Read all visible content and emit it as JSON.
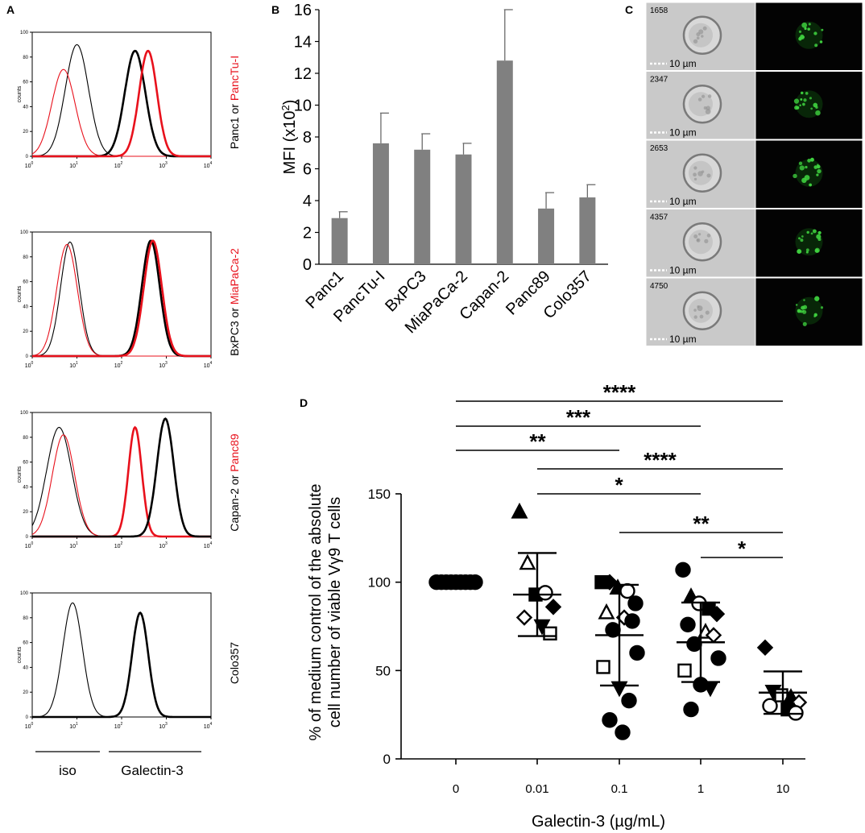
{
  "panel_labels": {
    "a": "A",
    "b": "B",
    "c": "C",
    "d": "D"
  },
  "colors": {
    "red": "#e8111c",
    "black": "#000000",
    "bar": "#808080",
    "green": "#3fd13f"
  },
  "chart_data": [
    {
      "id": "A",
      "type": "line",
      "description_kind": "flow cytometry histograms",
      "x_scale": "log",
      "xlim": [
        1,
        10000
      ],
      "ylim": [
        0,
        100
      ],
      "ylabel": "counts",
      "xtick_base": "10",
      "xtick_exps": [
        "0",
        "1",
        "2",
        "3",
        "4"
      ],
      "yticks": [
        "0",
        "20",
        "40",
        "60",
        "80",
        "100"
      ],
      "legend_iso": "iso",
      "legend_galectin": "Galectin-3",
      "histograms": [
        {
          "label_black": "Panc1",
          "label_or": " or ",
          "label_red": "PancTu-I",
          "series": [
            {
              "name": "Panc1 iso",
              "color": "black",
              "thick": false,
              "center": 10,
              "sigma": 0.26,
              "peak": 90
            },
            {
              "name": "PancTu-I iso",
              "color": "red",
              "thick": false,
              "center": 5,
              "sigma": 0.26,
              "peak": 70
            },
            {
              "name": "Panc1 Galectin-3",
              "color": "black",
              "thick": true,
              "center": 200,
              "sigma": 0.23,
              "peak": 85
            },
            {
              "name": "PancTu-I Galectin-3",
              "color": "red",
              "thick": true,
              "center": 390,
              "sigma": 0.2,
              "peak": 85
            }
          ]
        },
        {
          "label_black": "BxPC3",
          "label_or": " or ",
          "label_red": "MiaPaCa-2",
          "series": [
            {
              "name": "BxPC3 iso",
              "color": "black",
              "thick": false,
              "center": 7,
              "sigma": 0.21,
              "peak": 92
            },
            {
              "name": "MiaPaCa-2 iso",
              "color": "red",
              "thick": false,
              "center": 6,
              "sigma": 0.23,
              "peak": 90
            },
            {
              "name": "BxPC3 Galectin-3",
              "color": "black",
              "thick": true,
              "center": 450,
              "sigma": 0.2,
              "peak": 93
            },
            {
              "name": "MiaPaCa-2 Galectin-3",
              "color": "red",
              "thick": true,
              "center": 500,
              "sigma": 0.2,
              "peak": 93
            }
          ]
        },
        {
          "label_black": "Capan-2",
          "label_or": " or ",
          "label_red": "Panc89",
          "series": [
            {
              "name": "Capan-2 iso",
              "color": "black",
              "thick": false,
              "center": 4,
              "sigma": 0.28,
              "peak": 88
            },
            {
              "name": "Panc89 iso",
              "color": "red",
              "thick": false,
              "center": 5,
              "sigma": 0.25,
              "peak": 82
            },
            {
              "name": "Panc89 Galectin-3",
              "color": "red",
              "thick": true,
              "center": 200,
              "sigma": 0.15,
              "peak": 88
            },
            {
              "name": "Capan-2 Galectin-3",
              "color": "black",
              "thick": true,
              "center": 950,
              "sigma": 0.19,
              "peak": 95
            }
          ]
        },
        {
          "label_black": "Colo357",
          "label_or": "",
          "label_red": "",
          "series": [
            {
              "name": "Colo357 iso",
              "color": "black",
              "thick": false,
              "center": 8,
              "sigma": 0.22,
              "peak": 92
            },
            {
              "name": "Colo357 Galectin-3",
              "color": "black",
              "thick": true,
              "center": 260,
              "sigma": 0.18,
              "peak": 84
            }
          ]
        }
      ]
    },
    {
      "id": "B",
      "type": "bar",
      "categories": [
        "Panc1",
        "PancTu-I",
        "BxPC3",
        "MiaPaCa-2",
        "Capan-2",
        "Panc89",
        "Colo357"
      ],
      "values": [
        2.9,
        7.6,
        7.2,
        6.9,
        12.8,
        3.5,
        4.2
      ],
      "errors": [
        0.4,
        1.9,
        1.0,
        0.7,
        3.2,
        1.0,
        0.8
      ],
      "ylim": [
        0,
        16
      ],
      "yticks": [
        "0",
        "2",
        "4",
        "6",
        "8",
        "10",
        "12",
        "14",
        "16"
      ],
      "ylabel_main": "MFI (x10",
      "ylabel_sup": "2",
      "ylabel_close": ")",
      "xlabel": ""
    },
    {
      "id": "D",
      "type": "scatter",
      "categories": [
        "0",
        "0.01",
        "0.1",
        "1",
        "10"
      ],
      "xlabel": "Galectin-3 (µg/mL)",
      "ylabel_line1": "% of medium control of the absolute",
      "ylabel_line2": "cell number of viable Vγ9 T cells",
      "ylim": [
        0,
        150
      ],
      "yticks": [
        "0",
        "50",
        "100",
        "150"
      ],
      "summary": [
        {
          "mean": 100,
          "sd": 0
        },
        {
          "mean": 93,
          "sd": 23.5
        },
        {
          "mean": 70,
          "sd": 28.5
        },
        {
          "mean": 66,
          "sd": 22.5
        },
        {
          "mean": 37.5,
          "sd": 12
        }
      ],
      "points": [
        [
          {
            "y": 100,
            "m": "circle",
            "fill": true
          },
          {
            "y": 100,
            "m": "circle",
            "fill": true
          },
          {
            "y": 100,
            "m": "circle",
            "fill": true
          },
          {
            "y": 100,
            "m": "circle",
            "fill": true
          },
          {
            "y": 100,
            "m": "circle",
            "fill": true
          },
          {
            "y": 100,
            "m": "circle",
            "fill": true
          },
          {
            "y": 100,
            "m": "circle",
            "fill": true
          },
          {
            "y": 100,
            "m": "circle",
            "fill": true
          },
          {
            "y": 100,
            "m": "circle",
            "fill": true
          }
        ],
        [
          {
            "y": 140,
            "m": "triangle",
            "fill": true
          },
          {
            "y": 111,
            "m": "triangle",
            "fill": false
          },
          {
            "y": 93,
            "m": "square",
            "fill": true
          },
          {
            "y": 94,
            "m": "circle",
            "fill": false
          },
          {
            "y": 86,
            "m": "diamond",
            "fill": true
          },
          {
            "y": 80,
            "m": "diamond",
            "fill": false
          },
          {
            "y": 75,
            "m": "triangle-down",
            "fill": true
          },
          {
            "y": 71,
            "m": "square",
            "fill": false
          }
        ],
        [
          {
            "y": 100,
            "m": "square",
            "fill": true
          },
          {
            "y": 100,
            "m": "diamond",
            "fill": true
          },
          {
            "y": 97,
            "m": "triangle",
            "fill": true
          },
          {
            "y": 95,
            "m": "circle",
            "fill": false
          },
          {
            "y": 88,
            "m": "circle",
            "fill": true
          },
          {
            "y": 83,
            "m": "triangle",
            "fill": false
          },
          {
            "y": 80,
            "m": "diamond",
            "fill": false
          },
          {
            "y": 78,
            "m": "circle",
            "fill": true
          },
          {
            "y": 73,
            "m": "circle",
            "fill": true
          },
          {
            "y": 60,
            "m": "circle",
            "fill": true
          },
          {
            "y": 52,
            "m": "square",
            "fill": false
          },
          {
            "y": 40,
            "m": "triangle-down",
            "fill": true
          },
          {
            "y": 33,
            "m": "circle",
            "fill": true
          },
          {
            "y": 22,
            "m": "circle",
            "fill": true
          },
          {
            "y": 15,
            "m": "circle",
            "fill": true
          }
        ],
        [
          {
            "y": 107,
            "m": "circle",
            "fill": true
          },
          {
            "y": 92,
            "m": "triangle",
            "fill": true
          },
          {
            "y": 88,
            "m": "circle",
            "fill": false
          },
          {
            "y": 85,
            "m": "square",
            "fill": true
          },
          {
            "y": 82,
            "m": "diamond",
            "fill": true
          },
          {
            "y": 76,
            "m": "circle",
            "fill": true
          },
          {
            "y": 72,
            "m": "triangle",
            "fill": false
          },
          {
            "y": 70,
            "m": "diamond",
            "fill": false
          },
          {
            "y": 65,
            "m": "circle",
            "fill": true
          },
          {
            "y": 57,
            "m": "circle",
            "fill": true
          },
          {
            "y": 50,
            "m": "square",
            "fill": false
          },
          {
            "y": 42,
            "m": "circle",
            "fill": true
          },
          {
            "y": 40,
            "m": "triangle-down",
            "fill": true
          },
          {
            "y": 28,
            "m": "circle",
            "fill": true
          }
        ],
        [
          {
            "y": 63,
            "m": "diamond",
            "fill": true
          },
          {
            "y": 38,
            "m": "triangle-down",
            "fill": true
          },
          {
            "y": 36,
            "m": "square",
            "fill": false
          },
          {
            "y": 35,
            "m": "triangle",
            "fill": true
          },
          {
            "y": 32,
            "m": "diamond",
            "fill": false
          },
          {
            "y": 30,
            "m": "circle",
            "fill": false
          },
          {
            "y": 28,
            "m": "square",
            "fill": true
          },
          {
            "y": 26,
            "m": "circle",
            "fill": false
          }
        ]
      ],
      "significance": [
        {
          "from": 0,
          "to": 4,
          "label": "****"
        },
        {
          "from": 0,
          "to": 3,
          "label": "***"
        },
        {
          "from": 0,
          "to": 2,
          "label": "**"
        },
        {
          "from": 1,
          "to": 4,
          "label": "****"
        },
        {
          "from": 1,
          "to": 3,
          "label": "*"
        },
        {
          "from": 2,
          "to": 4,
          "label": "**"
        },
        {
          "from": 3,
          "to": 4,
          "label": "*"
        }
      ]
    }
  ],
  "panel_c": {
    "scale_label": "10 µm",
    "cell_ids": [
      "1658",
      "2347",
      "2653",
      "4357",
      "4750"
    ]
  }
}
